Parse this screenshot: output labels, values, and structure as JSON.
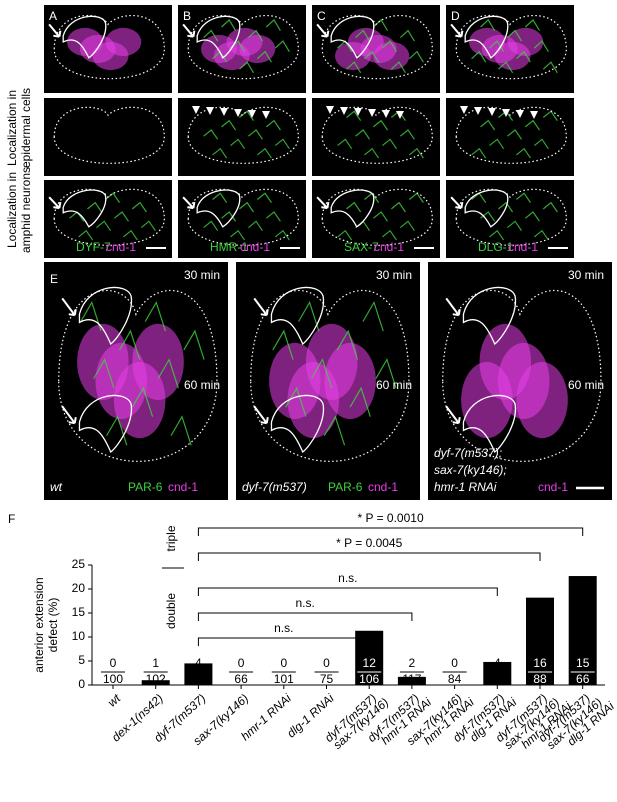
{
  "panels": {
    "top": {
      "letters": [
        "A",
        "B",
        "C",
        "D"
      ],
      "stains": [
        {
          "protein": "DYF-7",
          "marker": "cnd-1"
        },
        {
          "protein": "HMR-1",
          "marker": "cnd-1"
        },
        {
          "protein": "SAX-7",
          "marker": "cnd-1"
        },
        {
          "protein": "DLG-1",
          "marker": "cnd-1"
        }
      ],
      "row_labels": [
        [
          "Localization in",
          "epidermal cells"
        ],
        [
          "Localization in",
          "amphid neurons"
        ]
      ]
    },
    "E": {
      "letter": "E",
      "times": [
        "30 min",
        "60 min"
      ],
      "columns": [
        {
          "genotype": [
            "wt"
          ],
          "stains": [
            "PAR-6",
            "cnd-1"
          ]
        },
        {
          "genotype": [
            "dyf-7(m537)"
          ],
          "stains": [
            "PAR-6",
            "cnd-1"
          ]
        },
        {
          "genotype": [
            "dyf-7(m537);",
            "sax-7(ky146);",
            "hmr-1 RNAi"
          ],
          "stains": [
            "cnd-1"
          ]
        }
      ]
    }
  },
  "chart_data": {
    "type": "bar",
    "letter": "F",
    "y_label": [
      "anterior extension",
      "defect (%)"
    ],
    "categories": [
      [
        "wt"
      ],
      [
        "dex-1(ns42)"
      ],
      [
        "dyf-7(m537)"
      ],
      [
        "sax-7(ky146)"
      ],
      [
        "hmr-1 RNAi"
      ],
      [
        "dlg-1 RNAi"
      ],
      [
        "dyf-7(m537)",
        "sax-7(ky146)"
      ],
      [
        "dyf-7(m537)",
        "hmr-1 RNAi"
      ],
      [
        "sax-7(ky146)",
        "hmr-1 RNAi"
      ],
      [
        "dyf-7(m537)",
        "dlg-1 RNAi"
      ],
      [
        "dyf-7(m537)",
        "sax-7(ky146)",
        "hmr-1 RNAi"
      ],
      [
        "dyf-7(m537)",
        "sax-7(ky146)",
        "dlg-1 RNAi"
      ]
    ],
    "values": [
      0,
      1.0,
      4.5,
      0,
      0,
      0,
      11.3,
      1.7,
      0,
      4.8,
      18.2,
      22.7
    ],
    "defective": [
      0,
      1,
      4,
      0,
      0,
      0,
      12,
      2,
      0,
      4,
      16,
      15
    ],
    "total": [
      100,
      102,
      88,
      66,
      101,
      75,
      106,
      117,
      84,
      84,
      88,
      66
    ],
    "color": "#000000",
    "ylim": [
      0,
      25
    ],
    "yticks": [
      0,
      5,
      10,
      15,
      20,
      25
    ],
    "groups": [
      {
        "label": "triple",
        "comparisons": [
          {
            "from": 2,
            "to": 11,
            "label": "* P = 0.0010"
          },
          {
            "from": 2,
            "to": 10,
            "label": "* P = 0.0045"
          }
        ]
      },
      {
        "label": "double",
        "comparisons": [
          {
            "from": 2,
            "to": 9,
            "label": "n.s."
          },
          {
            "from": 2,
            "to": 7,
            "label": "n.s."
          },
          {
            "from": 2,
            "to": 6,
            "label": "n.s."
          }
        ]
      }
    ]
  }
}
